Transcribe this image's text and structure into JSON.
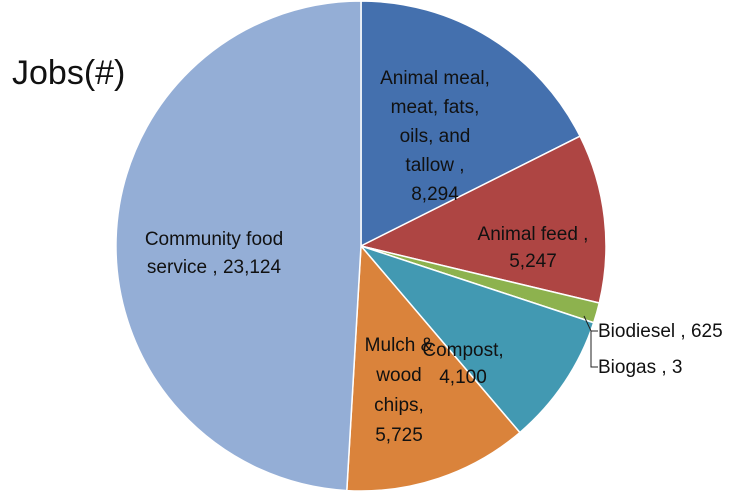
{
  "chart_data": {
    "type": "pie",
    "title": "Jobs(#)",
    "slices": [
      {
        "name": "Animal meal, meat, fats, oils, and tallow",
        "value": 8294,
        "value_label": "8,294",
        "color": "#4470AE",
        "label_lines": [
          "Animal meal,",
          "meat, fats,",
          "oils, and",
          "tallow ,",
          "8,294"
        ],
        "label_placement": "inside"
      },
      {
        "name": "Animal feed",
        "value": 5247,
        "value_label": "5,247",
        "color": "#AE4543",
        "label_lines": [
          "Animal feed ,",
          "5,247"
        ],
        "label_placement": "inside"
      },
      {
        "name": "Biodiesel",
        "value": 625,
        "value_label": "625",
        "color": "#8DB24E",
        "label_lines": [
          "Biodiesel , 625"
        ],
        "label_placement": "outside"
      },
      {
        "name": "Biogas",
        "value": 3,
        "value_label": "3",
        "color": "#71588F",
        "label_lines": [
          "Biogas , 3"
        ],
        "label_placement": "outside"
      },
      {
        "name": "Compost",
        "value": 4100,
        "value_label": "4,100",
        "color": "#4299B2",
        "label_lines": [
          "Compost,",
          "4,100"
        ],
        "label_placement": "inside"
      },
      {
        "name": "Mulch & wood chips",
        "value": 5725,
        "value_label": "5,725",
        "color": "#DA833B",
        "label_lines": [
          "Mulch &",
          "wood",
          "chips,",
          "5,725"
        ],
        "label_placement": "inside"
      },
      {
        "name": "Community food service",
        "value": 23124,
        "value_label": "23,124",
        "color": "#94AED6",
        "label_lines": [
          "Community food",
          "service , 23,124"
        ],
        "label_placement": "inside"
      }
    ],
    "start_angle_deg": 0,
    "direction": "clockwise",
    "legend": "none"
  }
}
